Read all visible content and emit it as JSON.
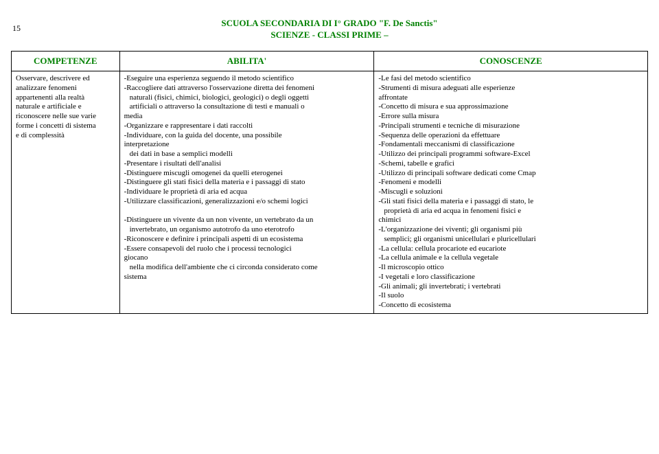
{
  "pageNumber": "15",
  "header": {
    "line1": "SCUOLA SECONDARIA DI I° GRADO \"F. De Sanctis\"",
    "line2": "SCIENZE - CLASSI PRIME –"
  },
  "columns": {
    "h1": "COMPETENZE",
    "h2": "ABILITA'",
    "h3": "CONOSCENZE"
  },
  "competenze": [
    "Osservare, descrivere ed",
    "analizzare fenomeni",
    "appartenenti alla realtà",
    "naturale e artificiale e",
    "riconoscere nelle sue varie",
    "forme i concetti di sistema",
    "e di complessità"
  ],
  "abilita": [
    "-Eseguire una esperienza seguendo il metodo scientifico",
    "-Raccogliere dati attraverso l'osservazione diretta dei fenomeni",
    " naturali (fisici, chimici, biologici, geologici) o degli oggetti",
    " artificiali o attraverso la consultazione di testi e manuali o",
    "media",
    "-Organizzare e rappresentare i dati raccolti",
    "-Individuare, con la guida del docente, una possibile",
    "interpretazione",
    " dei dati in base a semplici modelli",
    "-Presentare i risultati dell'analisi",
    "-Distinguere miscugli omogenei da quelli eterogenei",
    "-Distinguere gli stati fisici della materia e i passaggi di stato",
    "-Individuare le proprietà di aria ed acqua",
    "-Utilizzare classificazioni, generalizzazioni e/o schemi logici",
    "",
    "-Distinguere un vivente da un non vivente, un vertebrato da un",
    " invertebrato, un organismo autotrofo da uno eterotrofo",
    "-Riconoscere e definire i principali aspetti di un ecosistema",
    "-Essere consapevoli del ruolo che i processi tecnologici",
    "giocano",
    " nella modifica dell'ambiente che ci circonda considerato come",
    "sistema"
  ],
  "conoscenze": [
    "-Le fasi del metodo scientifico",
    "-Strumenti di misura adeguati alle esperienze",
    "affrontate",
    "-Concetto di misura e sua approssimazione",
    "-Errore sulla misura",
    "-Principali strumenti e tecniche di misurazione",
    "-Sequenza delle operazioni da effettuare",
    "-Fondamentali meccanismi di classificazione",
    "-Utilizzo dei principali programmi software-Excel",
    "-Schemi, tabelle e grafici",
    "-Utilizzo di principali software dedicati come Cmap",
    "-Fenomeni e modelli",
    "-Miscugli e soluzioni",
    "-Gli stati fisici della materia e i passaggi di stato, le",
    " proprietà di aria ed acqua in fenomeni fisici e",
    "chimici",
    "-L'organizzazione dei viventi; gli organismi più",
    " semplici; gli organismi unicellulari e pluricellulari",
    "-La cellula: cellula procariote ed eucariote",
    "-La cellula animale e la cellula vegetale",
    "-Il microscopio ottico",
    "-I vegetali e loro classificazione",
    "-Gli animali; gli invertebrati; i vertebrati",
    "-Il suolo",
    "-Concetto di ecosistema"
  ]
}
